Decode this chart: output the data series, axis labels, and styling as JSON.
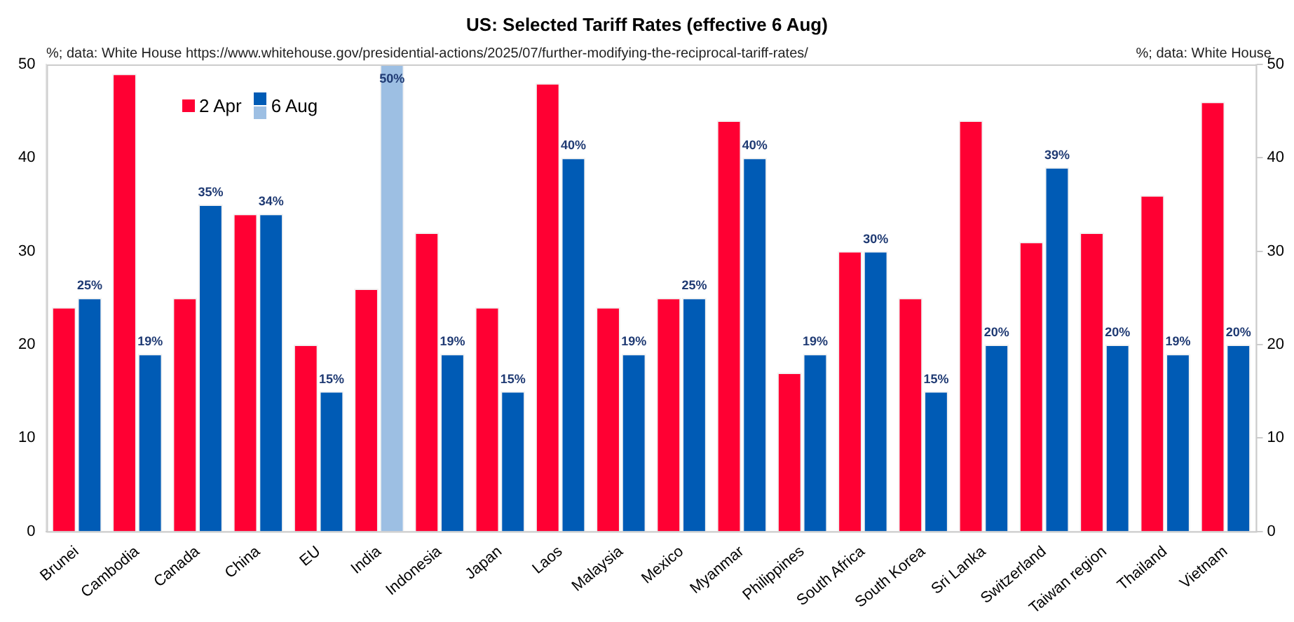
{
  "chart_data": {
    "type": "bar",
    "title": "US: Selected Tariff Rates (effective 6 Aug)",
    "annotations": [
      "%; data: White House https://www.whitehouse.gov/presidential-actions/2025/07/further-modifying-the-reciprocal-tariff-rates/",
      "%; data: White House"
    ],
    "categories": [
      "Brunei",
      "Cambodia",
      "Canada",
      "China",
      "EU",
      "India",
      "Indonesia",
      "Japan",
      "Laos",
      "Malaysia",
      "Mexico",
      "Myanmar",
      "Philippines",
      "South Africa",
      "South Korea",
      "Sri Lanka",
      "Switzerland",
      "Taiwan region",
      "Thailand",
      "Vietnam"
    ],
    "series": [
      {
        "name": "2 Apr",
        "color": "#ff0033",
        "values": [
          24,
          49,
          25,
          34,
          20,
          26,
          32,
          24,
          48,
          24,
          25,
          44,
          17,
          30,
          25,
          44,
          31,
          32,
          36,
          46
        ]
      },
      {
        "name": "6 Aug",
        "color": "#005bb5",
        "colors": [
          "#005bb5",
          "#005bb5",
          "#005bb5",
          "#005bb5",
          "#005bb5",
          "#9dbfe3",
          "#005bb5",
          "#005bb5",
          "#005bb5",
          "#005bb5",
          "#005bb5",
          "#005bb5",
          "#005bb5",
          "#005bb5",
          "#005bb5",
          "#005bb5",
          "#005bb5",
          "#005bb5",
          "#005bb5",
          "#005bb5"
        ],
        "values": [
          25,
          19,
          35,
          34,
          15,
          50,
          19,
          15,
          40,
          19,
          25,
          40,
          19,
          30,
          15,
          20,
          39,
          20,
          19,
          20
        ],
        "value_labels": [
          "25%",
          "19%",
          "35%",
          "34%",
          "15%",
          "50%",
          "19%",
          "15%",
          "40%",
          "19%",
          "25%",
          "40%",
          "19%",
          "30%",
          "15%",
          "20%",
          "39%",
          "20%",
          "19%",
          "20%"
        ]
      }
    ],
    "ylim": [
      0,
      50
    ],
    "yticks": [
      0,
      10,
      20,
      30,
      40,
      50
    ],
    "y2lim": [
      0,
      50
    ],
    "y2ticks": [
      0,
      10,
      20,
      30,
      40,
      50
    ],
    "grid": false,
    "legend": "top left"
  }
}
